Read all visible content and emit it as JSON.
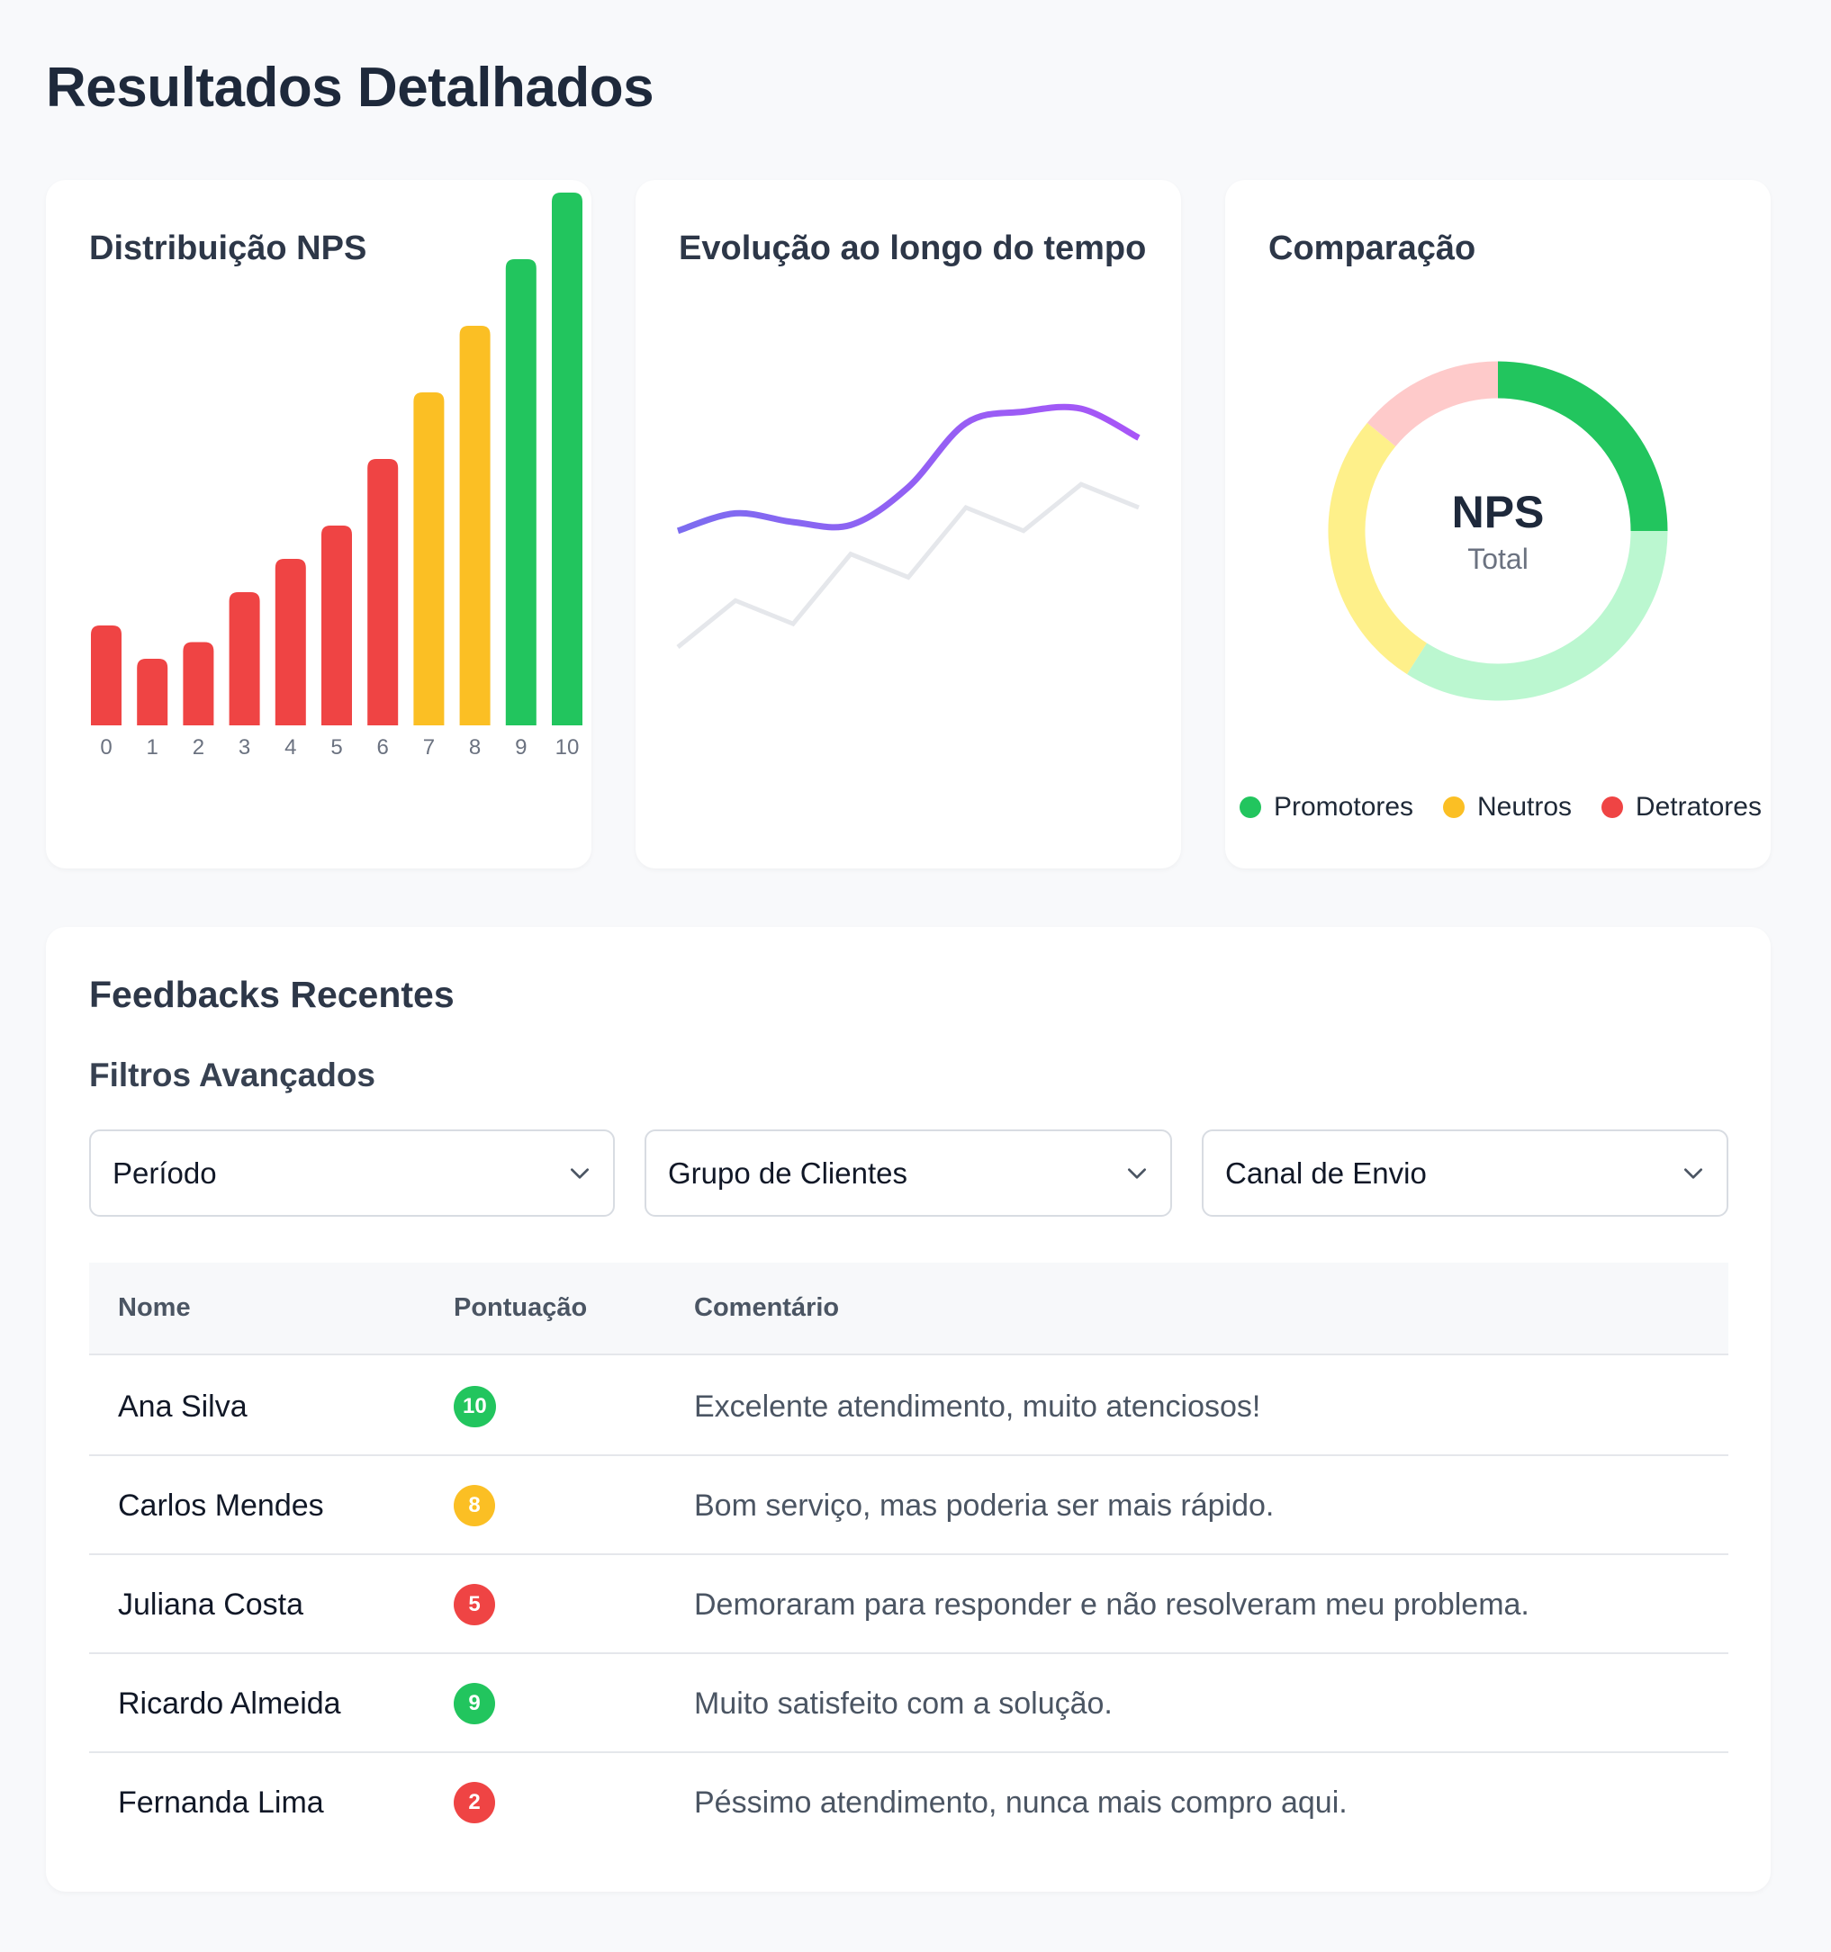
{
  "page": {
    "title": "Resultados Detalhados"
  },
  "colors": {
    "detractor": "#ef4444",
    "neutral": "#fbbf24",
    "promoter": "#22c55e",
    "line_primary": "#8b5cf6",
    "line_secondary": "#e5e7eb"
  },
  "cards": {
    "distribution": {
      "title": "Distribuição NPS"
    },
    "evolution": {
      "title": "Evolução ao longo do tempo"
    },
    "comparison": {
      "title": "Comparação",
      "center_title": "NPS",
      "center_subtitle": "Total"
    }
  },
  "chart_data": [
    {
      "type": "bar",
      "title": "Distribuição NPS",
      "categories": [
        "0",
        "1",
        "2",
        "3",
        "4",
        "5",
        "6",
        "7",
        "8",
        "9",
        "10"
      ],
      "values": [
        15,
        10,
        12.5,
        20,
        25,
        30,
        40,
        50,
        60,
        70,
        80
      ],
      "bar_colors": [
        "#ef4444",
        "#ef4444",
        "#ef4444",
        "#ef4444",
        "#ef4444",
        "#ef4444",
        "#ef4444",
        "#fbbf24",
        "#fbbf24",
        "#22c55e",
        "#22c55e"
      ],
      "grid": false
    },
    {
      "type": "line",
      "title": "Evolução ao longo do tempo",
      "x": [
        1,
        2,
        3,
        4,
        5,
        6,
        7,
        8,
        9
      ],
      "series": [
        {
          "values": [
            30,
            33,
            31.5,
            31,
            37.5,
            48.5,
            50.5,
            51,
            46
          ],
          "color": "#8b5cf6",
          "smooth": true
        },
        {
          "values": [
            10,
            18,
            14,
            26,
            22,
            34,
            30,
            38,
            34
          ],
          "color": "#e5e7eb",
          "smooth": false
        }
      ],
      "ylim": [
        0,
        60
      ],
      "grid": false
    },
    {
      "type": "pie",
      "title": "Comparação",
      "donut": true,
      "slices": [
        {
          "value": 25,
          "color": "#22c55e"
        },
        {
          "value": 34,
          "color": "#bbf7d0"
        },
        {
          "value": 27,
          "color": "#fef08a"
        },
        {
          "value": 14,
          "color": "#fecaca"
        }
      ],
      "legend": [
        {
          "label": "Promotores",
          "color": "#22c55e"
        },
        {
          "label": "Neutros",
          "color": "#fbbf24"
        },
        {
          "label": "Detratores",
          "color": "#ef4444"
        }
      ],
      "legend_position": "bottom"
    }
  ],
  "feedbacks": {
    "title": "Feedbacks Recentes",
    "filters_title": "Filtros Avançados",
    "filters": [
      {
        "label": "Período"
      },
      {
        "label": "Grupo de Clientes"
      },
      {
        "label": "Canal de Envio"
      }
    ],
    "columns": [
      "Nome",
      "Pontuação",
      "Comentário"
    ],
    "rows": [
      {
        "name": "Ana Silva",
        "score": "10",
        "color": "#22c55e",
        "comment": "Excelente atendimento, muito atenciosos!"
      },
      {
        "name": "Carlos Mendes",
        "score": "8",
        "color": "#fbbf24",
        "comment": "Bom serviço, mas poderia ser mais rápido."
      },
      {
        "name": "Juliana Costa",
        "score": "5",
        "color": "#ef4444",
        "comment": "Demoraram para responder e não resolveram meu problema."
      },
      {
        "name": "Ricardo Almeida",
        "score": "9",
        "color": "#22c55e",
        "comment": "Muito satisfeito com a solução."
      },
      {
        "name": "Fernanda Lima",
        "score": "2",
        "color": "#ef4444",
        "comment": "Péssimo atendimento, nunca mais compro aqui."
      }
    ]
  }
}
